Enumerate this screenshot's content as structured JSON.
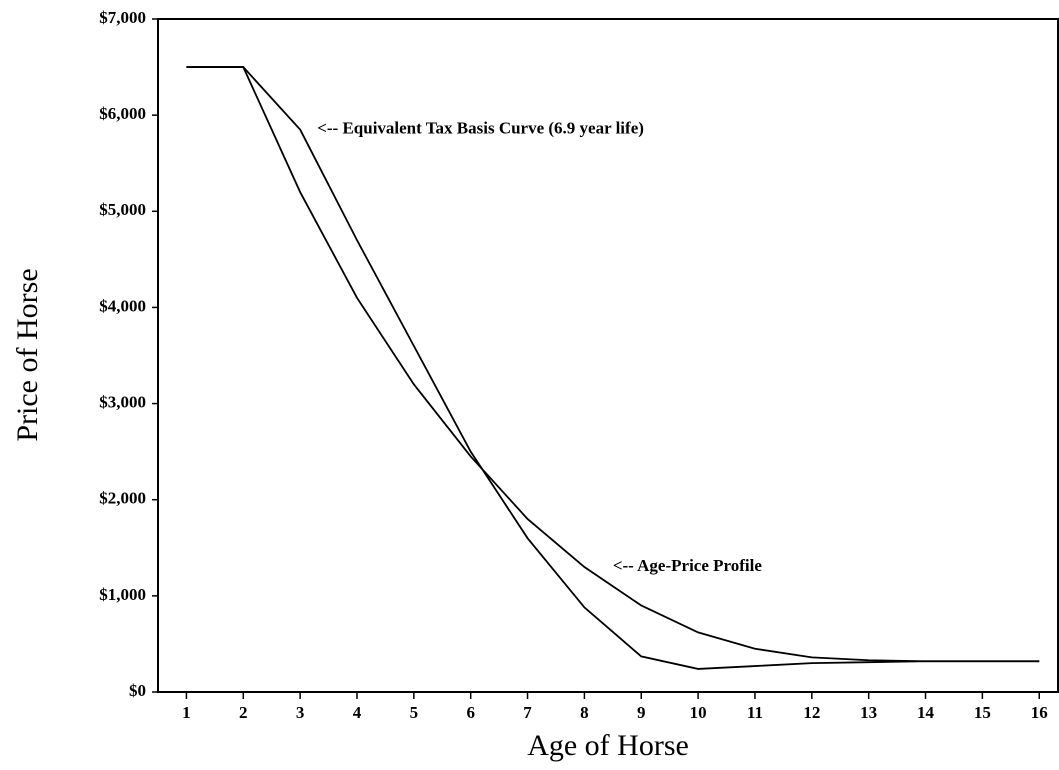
{
  "chart_data": {
    "type": "line",
    "xlabel": "Age of Horse",
    "ylabel": "Price of Horse",
    "x": [
      1,
      2,
      3,
      4,
      5,
      6,
      7,
      8,
      9,
      10,
      11,
      12,
      13,
      14,
      15,
      16
    ],
    "series": [
      {
        "name": "<-- Equivalent Tax Basis Curve (6.9 year life)",
        "color": "#000000",
        "values": [
          6500,
          6500,
          5850,
          4700,
          3600,
          2500,
          1600,
          880,
          370,
          240,
          270,
          300,
          310,
          320,
          320,
          320
        ]
      },
      {
        "name": "<-- Age-Price Profile",
        "color": "#000000",
        "values": [
          6500,
          6500,
          5200,
          4100,
          3200,
          2450,
          1800,
          1300,
          900,
          620,
          450,
          360,
          330,
          320,
          320,
          320
        ]
      }
    ],
    "xlim": [
      0.5,
      16.33
    ],
    "xticks": [
      1,
      2,
      3,
      4,
      5,
      6,
      7,
      8,
      9,
      10,
      11,
      12,
      13,
      14,
      15,
      16
    ],
    "ylim": [
      0,
      7000
    ],
    "yticks": [
      {
        "value": 0,
        "label": "$0"
      },
      {
        "value": 1000,
        "label": "$1,000"
      },
      {
        "value": 2000,
        "label": "$2,000"
      },
      {
        "value": 3000,
        "label": "$3,000"
      },
      {
        "value": 4000,
        "label": "$4,000"
      },
      {
        "value": 5000,
        "label": "$5,000"
      },
      {
        "value": 6000,
        "label": "$6,000"
      },
      {
        "value": 7000,
        "label": "$7,000"
      }
    ],
    "grid": false
  }
}
